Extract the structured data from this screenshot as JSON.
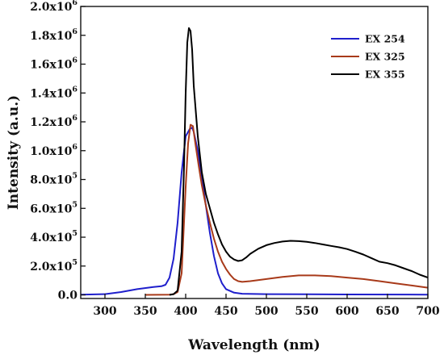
{
  "chart_data": {
    "type": "line",
    "xlabel": "Wavelength (nm)",
    "ylabel": "Intensity (a.u.)",
    "xlim": [
      270,
      700
    ],
    "ylim": [
      -25000,
      2000000
    ],
    "x_ticks": [
      {
        "value": 300,
        "label": "300"
      },
      {
        "value": 350,
        "label": "350"
      },
      {
        "value": 400,
        "label": "400"
      },
      {
        "value": 450,
        "label": "450"
      },
      {
        "value": 500,
        "label": "500"
      },
      {
        "value": 550,
        "label": "550"
      },
      {
        "value": 600,
        "label": "600"
      },
      {
        "value": 650,
        "label": "650"
      },
      {
        "value": 700,
        "label": "700"
      }
    ],
    "y_ticks": [
      {
        "value": 0,
        "label": "0.0",
        "exp": ""
      },
      {
        "value": 200000,
        "label": "2.0x10",
        "exp": "5"
      },
      {
        "value": 400000,
        "label": "4.0x10",
        "exp": "5"
      },
      {
        "value": 600000,
        "label": "6.0x10",
        "exp": "5"
      },
      {
        "value": 800000,
        "label": "8.0x10",
        "exp": "5"
      },
      {
        "value": 1000000,
        "label": "1.0x10",
        "exp": "6"
      },
      {
        "value": 1200000,
        "label": "1.2x10",
        "exp": "6"
      },
      {
        "value": 1400000,
        "label": "1.4x10",
        "exp": "6"
      },
      {
        "value": 1600000,
        "label": "1.6x10",
        "exp": "6"
      },
      {
        "value": 1800000,
        "label": "1.8x10",
        "exp": "6"
      },
      {
        "value": 2000000,
        "label": "2.0x10",
        "exp": "6"
      }
    ],
    "grid": false,
    "legend_position": "top-right",
    "series": [
      {
        "name": "EX 254",
        "color": "#1f1fcc",
        "points": [
          [
            270,
            2000
          ],
          [
            300,
            5000
          ],
          [
            320,
            20000
          ],
          [
            340,
            40000
          ],
          [
            360,
            55000
          ],
          [
            370,
            60000
          ],
          [
            375,
            70000
          ],
          [
            380,
            120000
          ],
          [
            385,
            250000
          ],
          [
            390,
            500000
          ],
          [
            395,
            850000
          ],
          [
            400,
            1100000
          ],
          [
            405,
            1150000
          ],
          [
            408,
            1160000
          ],
          [
            410,
            1130000
          ],
          [
            415,
            1000000
          ],
          [
            420,
            820000
          ],
          [
            425,
            620000
          ],
          [
            430,
            430000
          ],
          [
            435,
            270000
          ],
          [
            440,
            150000
          ],
          [
            445,
            80000
          ],
          [
            450,
            40000
          ],
          [
            460,
            15000
          ],
          [
            470,
            8000
          ],
          [
            500,
            5000
          ],
          [
            600,
            3000
          ],
          [
            700,
            2000
          ]
        ]
      },
      {
        "name": "EX 325",
        "color": "#a83a1a",
        "points": [
          [
            350,
            0
          ],
          [
            380,
            2000
          ],
          [
            385,
            5000
          ],
          [
            390,
            20000
          ],
          [
            395,
            150000
          ],
          [
            400,
            750000
          ],
          [
            403,
            1050000
          ],
          [
            406,
            1180000
          ],
          [
            409,
            1170000
          ],
          [
            412,
            1050000
          ],
          [
            416,
            900000
          ],
          [
            420,
            760000
          ],
          [
            425,
            620000
          ],
          [
            430,
            500000
          ],
          [
            435,
            390000
          ],
          [
            440,
            300000
          ],
          [
            445,
            230000
          ],
          [
            450,
            180000
          ],
          [
            455,
            140000
          ],
          [
            460,
            110000
          ],
          [
            465,
            95000
          ],
          [
            470,
            90000
          ],
          [
            480,
            95000
          ],
          [
            500,
            110000
          ],
          [
            520,
            125000
          ],
          [
            540,
            135000
          ],
          [
            560,
            135000
          ],
          [
            580,
            130000
          ],
          [
            600,
            120000
          ],
          [
            620,
            110000
          ],
          [
            640,
            95000
          ],
          [
            660,
            80000
          ],
          [
            680,
            65000
          ],
          [
            700,
            50000
          ]
        ]
      },
      {
        "name": "EX 355",
        "color": "#000000",
        "points": [
          [
            380,
            0
          ],
          [
            385,
            5000
          ],
          [
            390,
            30000
          ],
          [
            395,
            300000
          ],
          [
            398,
            900000
          ],
          [
            400,
            1400000
          ],
          [
            402,
            1750000
          ],
          [
            404,
            1850000
          ],
          [
            406,
            1830000
          ],
          [
            408,
            1700000
          ],
          [
            410,
            1450000
          ],
          [
            415,
            1100000
          ],
          [
            420,
            850000
          ],
          [
            425,
            700000
          ],
          [
            430,
            600000
          ],
          [
            435,
            500000
          ],
          [
            440,
            420000
          ],
          [
            445,
            350000
          ],
          [
            450,
            300000
          ],
          [
            455,
            265000
          ],
          [
            460,
            245000
          ],
          [
            465,
            235000
          ],
          [
            470,
            240000
          ],
          [
            475,
            260000
          ],
          [
            480,
            285000
          ],
          [
            490,
            320000
          ],
          [
            500,
            345000
          ],
          [
            510,
            360000
          ],
          [
            520,
            370000
          ],
          [
            530,
            375000
          ],
          [
            540,
            373000
          ],
          [
            550,
            368000
          ],
          [
            560,
            360000
          ],
          [
            570,
            350000
          ],
          [
            580,
            340000
          ],
          [
            590,
            330000
          ],
          [
            600,
            318000
          ],
          [
            610,
            300000
          ],
          [
            620,
            280000
          ],
          [
            630,
            255000
          ],
          [
            640,
            230000
          ],
          [
            650,
            220000
          ],
          [
            660,
            205000
          ],
          [
            670,
            185000
          ],
          [
            680,
            165000
          ],
          [
            690,
            140000
          ],
          [
            700,
            120000
          ]
        ]
      }
    ]
  }
}
